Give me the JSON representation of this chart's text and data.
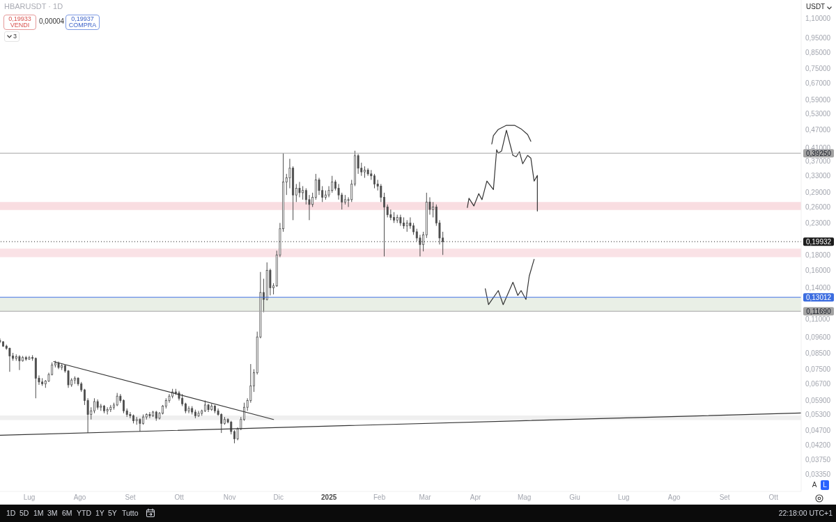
{
  "chart_data": {
    "type": "candlestick",
    "title": "HBARUSDT · 1D",
    "color": "#4d4d4d",
    "log": true,
    "marker": "none",
    "x": [
      "2024-06-13",
      "2024-06-15",
      "2024-06-17",
      "2024-06-19",
      "2024-06-21",
      "2024-06-23",
      "2024-06-25",
      "2024-06-27",
      "2024-06-29",
      "2024-07-01",
      "2024-07-03",
      "2024-07-05",
      "2024-07-07",
      "2024-07-09",
      "2024-07-11",
      "2024-07-13",
      "2024-07-15",
      "2024-07-17",
      "2024-07-19",
      "2024-07-21",
      "2024-07-23",
      "2024-07-25",
      "2024-07-27",
      "2024-07-29",
      "2024-07-31",
      "2024-08-02",
      "2024-08-04",
      "2024-08-06",
      "2024-08-08",
      "2024-08-10",
      "2024-08-12",
      "2024-08-14",
      "2024-08-16",
      "2024-08-18",
      "2024-08-20",
      "2024-08-22",
      "2024-08-24",
      "2024-08-26",
      "2024-08-28",
      "2024-08-30",
      "2024-09-01",
      "2024-09-03",
      "2024-09-05",
      "2024-09-07",
      "2024-09-09",
      "2024-09-11",
      "2024-09-13",
      "2024-09-15",
      "2024-09-17",
      "2024-09-19",
      "2024-09-21",
      "2024-09-23",
      "2024-09-25",
      "2024-09-27",
      "2024-09-29",
      "2024-10-01",
      "2024-10-03",
      "2024-10-05",
      "2024-10-07",
      "2024-10-09",
      "2024-10-11",
      "2024-10-13",
      "2024-10-15",
      "2024-10-17",
      "2024-10-19",
      "2024-10-21",
      "2024-10-23",
      "2024-10-25",
      "2024-10-27",
      "2024-10-29",
      "2024-10-31",
      "2024-11-02",
      "2024-11-04",
      "2024-11-06",
      "2024-11-08",
      "2024-11-10",
      "2024-11-12",
      "2024-11-14",
      "2024-11-16",
      "2024-11-18",
      "2024-11-20",
      "2024-11-22",
      "2024-11-24",
      "2024-11-26",
      "2024-11-28",
      "2024-11-30",
      "2024-12-02",
      "2024-12-04",
      "2024-12-06",
      "2024-12-08",
      "2024-12-10",
      "2024-12-12",
      "2024-12-14",
      "2024-12-16",
      "2024-12-18",
      "2024-12-20",
      "2024-12-22",
      "2024-12-24",
      "2024-12-26",
      "2024-12-28",
      "2024-12-30",
      "2025-01-01",
      "2025-01-03",
      "2025-01-05",
      "2025-01-07",
      "2025-01-09",
      "2025-01-11",
      "2025-01-13",
      "2025-01-15",
      "2025-01-17",
      "2025-01-19",
      "2025-01-21",
      "2025-01-23",
      "2025-01-25",
      "2025-01-27",
      "2025-01-29",
      "2025-01-31",
      "2025-02-02",
      "2025-02-04",
      "2025-02-06",
      "2025-02-08",
      "2025-02-10",
      "2025-02-12",
      "2025-02-14",
      "2025-02-16",
      "2025-02-18",
      "2025-02-20",
      "2025-02-22",
      "2025-02-24",
      "2025-02-26",
      "2025-02-28",
      "2025-03-02",
      "2025-03-04",
      "2025-03-06",
      "2025-03-08",
      "2025-03-10",
      "2025-03-12"
    ],
    "ohlc": [
      [
        0.0935,
        0.095,
        0.0915,
        0.0925
      ],
      [
        0.0925,
        0.093,
        0.089,
        0.0895
      ],
      [
        0.0895,
        0.0905,
        0.087,
        0.088
      ],
      [
        0.088,
        0.0885,
        0.0735,
        0.083
      ],
      [
        0.083,
        0.085,
        0.08,
        0.0815
      ],
      [
        0.0815,
        0.084,
        0.08,
        0.0825
      ],
      [
        0.0825,
        0.0835,
        0.0745,
        0.08
      ],
      [
        0.08,
        0.083,
        0.0795,
        0.082
      ],
      [
        0.082,
        0.083,
        0.08,
        0.081
      ],
      [
        0.081,
        0.083,
        0.0805,
        0.082
      ],
      [
        0.082,
        0.0835,
        0.08,
        0.0815
      ],
      [
        0.0815,
        0.082,
        0.06,
        0.07
      ],
      [
        0.07,
        0.0715,
        0.0665,
        0.068
      ],
      [
        0.068,
        0.07,
        0.066,
        0.067
      ],
      [
        0.067,
        0.069,
        0.065,
        0.0685
      ],
      [
        0.0685,
        0.073,
        0.068,
        0.072
      ],
      [
        0.072,
        0.079,
        0.0715,
        0.0775
      ],
      [
        0.0775,
        0.08,
        0.076,
        0.0785
      ],
      [
        0.0785,
        0.0795,
        0.075,
        0.076
      ],
      [
        0.076,
        0.078,
        0.0745,
        0.077
      ],
      [
        0.077,
        0.0775,
        0.073,
        0.074
      ],
      [
        0.074,
        0.0745,
        0.065,
        0.0665
      ],
      [
        0.0665,
        0.07,
        0.0655,
        0.069
      ],
      [
        0.069,
        0.071,
        0.067,
        0.07
      ],
      [
        0.07,
        0.0705,
        0.066,
        0.067
      ],
      [
        0.067,
        0.068,
        0.063,
        0.064
      ],
      [
        0.064,
        0.0645,
        0.057,
        0.059
      ],
      [
        0.059,
        0.06,
        0.046,
        0.053
      ],
      [
        0.053,
        0.056,
        0.051,
        0.0545
      ],
      [
        0.0545,
        0.06,
        0.0535,
        0.0585
      ],
      [
        0.0585,
        0.0595,
        0.055,
        0.056
      ],
      [
        0.056,
        0.0575,
        0.0545,
        0.0565
      ],
      [
        0.0565,
        0.057,
        0.0535,
        0.0545
      ],
      [
        0.0545,
        0.056,
        0.053,
        0.055
      ],
      [
        0.055,
        0.057,
        0.054,
        0.056
      ],
      [
        0.056,
        0.058,
        0.055,
        0.057
      ],
      [
        0.057,
        0.0625,
        0.0565,
        0.061
      ],
      [
        0.061,
        0.062,
        0.058,
        0.059
      ],
      [
        0.059,
        0.0595,
        0.0535,
        0.0545
      ],
      [
        0.0545,
        0.0555,
        0.052,
        0.053
      ],
      [
        0.053,
        0.054,
        0.0515,
        0.0525
      ],
      [
        0.0525,
        0.053,
        0.0495,
        0.0505
      ],
      [
        0.0505,
        0.052,
        0.049,
        0.051
      ],
      [
        0.051,
        0.0515,
        0.0465,
        0.0495
      ],
      [
        0.0495,
        0.053,
        0.049,
        0.052
      ],
      [
        0.052,
        0.0535,
        0.051,
        0.053
      ],
      [
        0.053,
        0.054,
        0.0515,
        0.0525
      ],
      [
        0.0525,
        0.0545,
        0.052,
        0.054
      ],
      [
        0.054,
        0.0545,
        0.0505,
        0.0515
      ],
      [
        0.0515,
        0.054,
        0.051,
        0.0535
      ],
      [
        0.0535,
        0.057,
        0.053,
        0.0565
      ],
      [
        0.0565,
        0.06,
        0.0555,
        0.059
      ],
      [
        0.059,
        0.062,
        0.058,
        0.061
      ],
      [
        0.061,
        0.0645,
        0.06,
        0.063
      ],
      [
        0.063,
        0.0645,
        0.0615,
        0.0625
      ],
      [
        0.0625,
        0.0635,
        0.059,
        0.06
      ],
      [
        0.06,
        0.062,
        0.0565,
        0.0575
      ],
      [
        0.0575,
        0.058,
        0.0535,
        0.0545
      ],
      [
        0.0545,
        0.0565,
        0.0535,
        0.0555
      ],
      [
        0.0555,
        0.0565,
        0.053,
        0.054
      ],
      [
        0.054,
        0.055,
        0.0515,
        0.0525
      ],
      [
        0.0525,
        0.0545,
        0.052,
        0.0535
      ],
      [
        0.0535,
        0.055,
        0.0525,
        0.0545
      ],
      [
        0.0545,
        0.059,
        0.054,
        0.057
      ],
      [
        0.057,
        0.0575,
        0.054,
        0.055
      ],
      [
        0.055,
        0.0575,
        0.0545,
        0.0565
      ],
      [
        0.0565,
        0.057,
        0.0535,
        0.0545
      ],
      [
        0.0545,
        0.0555,
        0.0525,
        0.053
      ],
      [
        0.053,
        0.0535,
        0.046,
        0.0495
      ],
      [
        0.0495,
        0.052,
        0.049,
        0.051
      ],
      [
        0.051,
        0.0515,
        0.0495,
        0.05
      ],
      [
        0.05,
        0.0505,
        0.0455,
        0.0465
      ],
      [
        0.0465,
        0.047,
        0.0425,
        0.044
      ],
      [
        0.044,
        0.048,
        0.0435,
        0.0475
      ],
      [
        0.0475,
        0.052,
        0.047,
        0.051
      ],
      [
        0.051,
        0.058,
        0.0505,
        0.056
      ],
      [
        0.056,
        0.06,
        0.0545,
        0.059
      ],
      [
        0.059,
        0.078,
        0.058,
        0.066
      ],
      [
        0.066,
        0.075,
        0.063,
        0.073
      ],
      [
        0.073,
        0.1,
        0.072,
        0.096
      ],
      [
        0.096,
        0.158,
        0.095,
        0.135
      ],
      [
        0.135,
        0.15,
        0.116,
        0.128
      ],
      [
        0.128,
        0.17,
        0.127,
        0.16
      ],
      [
        0.16,
        0.162,
        0.132,
        0.14
      ],
      [
        0.14,
        0.145,
        0.133,
        0.142
      ],
      [
        0.142,
        0.186,
        0.141,
        0.18
      ],
      [
        0.18,
        0.23,
        0.177,
        0.22
      ],
      [
        0.22,
        0.3925,
        0.215,
        0.315
      ],
      [
        0.315,
        0.335,
        0.285,
        0.325
      ],
      [
        0.325,
        0.376,
        0.3,
        0.35
      ],
      [
        0.35,
        0.355,
        0.235,
        0.285
      ],
      [
        0.285,
        0.31,
        0.27,
        0.3
      ],
      [
        0.3,
        0.315,
        0.28,
        0.29
      ],
      [
        0.29,
        0.305,
        0.275,
        0.295
      ],
      [
        0.295,
        0.3,
        0.265,
        0.275
      ],
      [
        0.275,
        0.285,
        0.235,
        0.265
      ],
      [
        0.265,
        0.29,
        0.26,
        0.28
      ],
      [
        0.28,
        0.335,
        0.275,
        0.32
      ],
      [
        0.32,
        0.325,
        0.285,
        0.295
      ],
      [
        0.295,
        0.305,
        0.27,
        0.28
      ],
      [
        0.28,
        0.295,
        0.275,
        0.285
      ],
      [
        0.285,
        0.305,
        0.28,
        0.295
      ],
      [
        0.295,
        0.33,
        0.29,
        0.315
      ],
      [
        0.315,
        0.32,
        0.295,
        0.3
      ],
      [
        0.3,
        0.31,
        0.275,
        0.285
      ],
      [
        0.285,
        0.29,
        0.255,
        0.27
      ],
      [
        0.27,
        0.285,
        0.265,
        0.275
      ],
      [
        0.275,
        0.28,
        0.26,
        0.275
      ],
      [
        0.275,
        0.32,
        0.27,
        0.31
      ],
      [
        0.31,
        0.4,
        0.305,
        0.385
      ],
      [
        0.385,
        0.39,
        0.335,
        0.35
      ],
      [
        0.35,
        0.365,
        0.33,
        0.34
      ],
      [
        0.34,
        0.355,
        0.325,
        0.345
      ],
      [
        0.345,
        0.35,
        0.33,
        0.335
      ],
      [
        0.335,
        0.345,
        0.32,
        0.33
      ],
      [
        0.33,
        0.335,
        0.3,
        0.31
      ],
      [
        0.31,
        0.32,
        0.295,
        0.305
      ],
      [
        0.305,
        0.31,
        0.27,
        0.28
      ],
      [
        0.28,
        0.29,
        0.178,
        0.26
      ],
      [
        0.26,
        0.265,
        0.24,
        0.245
      ],
      [
        0.245,
        0.255,
        0.235,
        0.24
      ],
      [
        0.24,
        0.25,
        0.23,
        0.235
      ],
      [
        0.235,
        0.245,
        0.23,
        0.24
      ],
      [
        0.24,
        0.245,
        0.225,
        0.23
      ],
      [
        0.23,
        0.24,
        0.22,
        0.225
      ],
      [
        0.225,
        0.235,
        0.215,
        0.23
      ],
      [
        0.23,
        0.24,
        0.22,
        0.225
      ],
      [
        0.225,
        0.23,
        0.21,
        0.215
      ],
      [
        0.215,
        0.22,
        0.2,
        0.205
      ],
      [
        0.205,
        0.21,
        0.178,
        0.195
      ],
      [
        0.195,
        0.215,
        0.185,
        0.21
      ],
      [
        0.21,
        0.29,
        0.205,
        0.27
      ],
      [
        0.27,
        0.28,
        0.245,
        0.255
      ],
      [
        0.255,
        0.27,
        0.24,
        0.26
      ],
      [
        0.26,
        0.265,
        0.225,
        0.23
      ],
      [
        0.23,
        0.235,
        0.195,
        0.205
      ],
      [
        0.205,
        0.215,
        0.18,
        0.1993
      ]
    ],
    "series": [
      {
        "type": "line",
        "x": [
          "2024-07-16",
          "2024-11-28"
        ],
        "values": [
          0.0795,
          0.051
        ],
        "color": "#333333"
      },
      {
        "type": "line",
        "x": [
          "2024-06-13",
          "2025-10-18"
        ],
        "values": [
          0.0452,
          0.0536
        ],
        "color": "#333333"
      },
      {
        "type": "line",
        "x": [
          "2025-03-27",
          "2025-03-28",
          "2025-03-31",
          "2025-04-03",
          "2025-04-05",
          "2025-04-08",
          "2025-04-12",
          "2025-04-14",
          "2025-04-15",
          "2025-04-17",
          "2025-04-20",
          "2025-04-24",
          "2025-04-26",
          "2025-04-28",
          "2025-04-30",
          "2025-05-03",
          "2025-05-05",
          "2025-05-07",
          "2025-05-09",
          "2025-05-09"
        ],
        "values": [
          0.259,
          0.278,
          0.262,
          0.288,
          0.275,
          0.317,
          0.297,
          0.403,
          0.393,
          0.399,
          0.468,
          0.386,
          0.382,
          0.397,
          0.362,
          0.386,
          0.378,
          0.317,
          0.331,
          0.252
        ],
        "color": "#333333"
      },
      {
        "type": "line",
        "x": [
          "2025-04-11",
          "2025-04-12",
          "2025-04-15",
          "2025-04-20",
          "2025-04-25",
          "2025-04-29",
          "2025-05-03",
          "2025-05-05"
        ],
        "values": [
          0.421,
          0.449,
          0.471,
          0.486,
          0.486,
          0.473,
          0.453,
          0.43
        ],
        "color": "#333333"
      },
      {
        "type": "line",
        "x": [
          "2025-04-07",
          "2025-04-09",
          "2025-04-15",
          "2025-04-18",
          "2025-04-24",
          "2025-04-27",
          "2025-04-29",
          "2025-05-02",
          "2025-05-04",
          "2025-05-07"
        ],
        "values": [
          0.139,
          0.123,
          0.137,
          0.123,
          0.146,
          0.132,
          0.137,
          0.128,
          0.153,
          0.174
        ],
        "color": "#333333"
      }
    ],
    "bands": [
      {
        "axis": "y",
        "from": 0.254,
        "to": 0.27,
        "color": "#f8d9de"
      },
      {
        "axis": "y",
        "from": 0.177,
        "to": 0.189,
        "color": "#f9dfe3"
      },
      {
        "axis": "y",
        "from": 0.117,
        "to": 0.13,
        "color": "#e7ede3"
      },
      {
        "axis": "y",
        "from": 0.0508,
        "to": 0.0526,
        "color": "#ededed"
      }
    ],
    "ref_lines": [
      {
        "axis": "y",
        "value": 0.3925,
        "label": "0,39250",
        "color": "#a3a3a3"
      },
      {
        "axis": "y",
        "value": 0.19932,
        "label": "0,19932",
        "color": "#1c1c1c",
        "line_style": "dotted"
      },
      {
        "axis": "y",
        "value": 0.13012,
        "label": "0,13012",
        "color": "#3c6de0"
      },
      {
        "axis": "y",
        "value": 0.1169,
        "label": "0,11690",
        "color": "#a3a3a3"
      }
    ],
    "xlim": [
      "2024-06-13",
      "2025-10-18"
    ],
    "xticks": [
      {
        "value": "2024-07-01",
        "label": "Lug"
      },
      {
        "value": "2024-08-01",
        "label": "Ago"
      },
      {
        "value": "2024-09-01",
        "label": "Set"
      },
      {
        "value": "2024-10-01",
        "label": "Ott"
      },
      {
        "value": "2024-11-01",
        "label": "Nov"
      },
      {
        "value": "2024-12-01",
        "label": "Dic"
      },
      {
        "value": "2025-01-01",
        "label": "2025"
      },
      {
        "value": "2025-02-01",
        "label": "Feb"
      },
      {
        "value": "2025-03-01",
        "label": "Mar"
      },
      {
        "value": "2025-04-01",
        "label": "Apr"
      },
      {
        "value": "2025-05-01",
        "label": "Mag"
      },
      {
        "value": "2025-06-01",
        "label": "Giu"
      },
      {
        "value": "2025-07-01",
        "label": "Lug"
      },
      {
        "value": "2025-08-01",
        "label": "Ago"
      },
      {
        "value": "2025-09-01",
        "label": "Set"
      },
      {
        "value": "2025-10-01",
        "label": "Ott"
      }
    ],
    "ylim": [
      0.0294,
      1.27
    ],
    "yticks": [
      {
        "value": 1.1,
        "label": "1,10000"
      },
      {
        "value": 0.95,
        "label": "0,95000"
      },
      {
        "value": 0.85,
        "label": "0,85000"
      },
      {
        "value": 0.75,
        "label": "0,75000"
      },
      {
        "value": 0.67,
        "label": "0,67000"
      },
      {
        "value": 0.59,
        "label": "0,59000"
      },
      {
        "value": 0.53,
        "label": "0,53000"
      },
      {
        "value": 0.47,
        "label": "0,47000"
      },
      {
        "value": 0.41,
        "label": "0,41000"
      },
      {
        "value": 0.37,
        "label": "0,37000"
      },
      {
        "value": 0.33,
        "label": "0,33000"
      },
      {
        "value": 0.29,
        "label": "0,29000"
      },
      {
        "value": 0.26,
        "label": "0,26000"
      },
      {
        "value": 0.23,
        "label": "0,23000"
      },
      {
        "value": 0.18,
        "label": "0,18000"
      },
      {
        "value": 0.16,
        "label": "0,16000"
      },
      {
        "value": 0.14,
        "label": "0,14000"
      },
      {
        "value": 0.11,
        "label": "0,11000"
      },
      {
        "value": 0.096,
        "label": "0,09600"
      },
      {
        "value": 0.085,
        "label": "0,08500"
      },
      {
        "value": 0.075,
        "label": "0,07500"
      },
      {
        "value": 0.067,
        "label": "0,06700"
      },
      {
        "value": 0.059,
        "label": "0,05900"
      },
      {
        "value": 0.053,
        "label": "0,05300"
      },
      {
        "value": 0.047,
        "label": "0,04700"
      },
      {
        "value": 0.042,
        "label": "0,04200"
      },
      {
        "value": 0.0375,
        "label": "0,03750"
      },
      {
        "value": 0.0335,
        "label": "0,03350"
      }
    ],
    "annotations": [
      "0,19933",
      "VENDI",
      "0,00004",
      "0,19937",
      "COMPRA",
      "3",
      "USDT",
      "A",
      "L",
      "1D",
      "5D",
      "1M",
      "3M",
      "6M",
      "YTD",
      "1Y",
      "5Y",
      "Tutto",
      "22:18:00 UTC+1"
    ]
  }
}
